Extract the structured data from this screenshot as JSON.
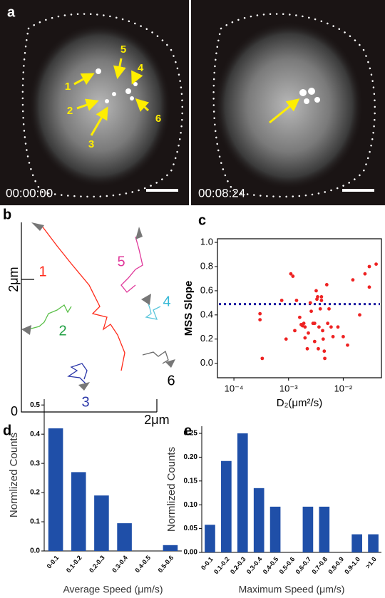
{
  "panel_a": {
    "label": "a",
    "frames": [
      {
        "timestamp": "00:00:00",
        "markers": [
          "1",
          "2",
          "3",
          "4",
          "5",
          "6"
        ]
      },
      {
        "timestamp": "00:08:24"
      }
    ]
  },
  "panel_b": {
    "label": "b",
    "y_scale_label": "2μm",
    "x_scale_label": "2μm",
    "origin_label": "0",
    "tracks": [
      "1",
      "2",
      "3",
      "4",
      "5",
      "6"
    ]
  },
  "chart_data": [
    {
      "type": "scatter",
      "label": "c",
      "xlabel": "D₂(μm²/s)",
      "ylabel": "MSS Slope",
      "color": "#ee2222",
      "xscale": "log",
      "xlim": [
        5e-05,
        0.05
      ],
      "ylim": [
        -0.12,
        1.03
      ],
      "xticks": [
        {
          "value": 0.0001,
          "label": "10⁻⁴"
        },
        {
          "value": 0.001,
          "label": "10⁻³"
        },
        {
          "value": 0.01,
          "label": "10⁻²"
        }
      ],
      "yticks": [
        {
          "value": 0,
          "label": "0.0"
        },
        0.2,
        0.4,
        0.6,
        0.8,
        {
          "value": 1,
          "label": "1.0"
        }
      ],
      "reference_line": {
        "y": 0.49,
        "color": "#1a1aa0"
      },
      "x": [
        0.00033,
        0.0003,
        0.0003,
        0.00075,
        0.0011,
        0.0012,
        0.0009,
        0.0013,
        0.0014,
        0.0016,
        0.0017,
        0.0018,
        0.0019,
        0.002,
        0.002,
        0.0022,
        0.0023,
        0.0025,
        0.0026,
        0.0028,
        0.003,
        0.003,
        0.0032,
        0.0033,
        0.0034,
        0.0035,
        0.0036,
        0.0038,
        0.004,
        0.004,
        0.0042,
        0.0043,
        0.0045,
        0.0046,
        0.005,
        0.0052,
        0.0055,
        0.006,
        0.0065,
        0.008,
        0.01,
        0.012,
        0.015,
        0.02,
        0.025,
        0.03,
        0.03,
        0.04
      ],
      "y": [
        0.04,
        0.41,
        0.36,
        0.52,
        0.74,
        0.72,
        0.2,
        0.27,
        0.52,
        0.38,
        0.32,
        0.31,
        0.33,
        0.3,
        0.21,
        0.12,
        0.25,
        0.5,
        0.43,
        0.33,
        0.33,
        0.18,
        0.6,
        0.53,
        0.55,
        0.12,
        0.3,
        0.45,
        0.55,
        0.52,
        0.27,
        0.2,
        0.1,
        0.04,
        0.65,
        0.33,
        0.45,
        0.3,
        0.22,
        0.3,
        0.22,
        0.15,
        0.69,
        0.4,
        0.74,
        0.63,
        0.8,
        0.82
      ]
    },
    {
      "type": "bar",
      "label": "d",
      "xlabel": "Average Speed (μm/s)",
      "ylabel": "Normlized Counts",
      "color": "#1f4fa8",
      "categories": [
        "0-0.1",
        "0.1-0.2",
        "0.2-0.3",
        "0.3-0.4",
        "0.4-0.5",
        "0.5-0.6"
      ],
      "values": [
        0.42,
        0.27,
        0.19,
        0.095,
        0,
        0.02
      ],
      "ylim": [
        0,
        0.52
      ],
      "yticks": [
        {
          "value": 0,
          "label": "0.0"
        },
        0.1,
        0.2,
        0.3,
        0.4,
        0.5
      ]
    },
    {
      "type": "bar",
      "label": "e",
      "xlabel": "Maximum Speed (μm/s)",
      "ylabel": "Normlized Counts",
      "color": "#1f4fa8",
      "categories": [
        "0-0.1",
        "0.1-0.2",
        "0.2-0.3",
        "0.3-0.4",
        "0.4-0.5",
        "0.5-0.6",
        "0.6-0.7",
        "0.7-0.8",
        "0.8-0.9",
        "0.9-1.0",
        ">1.0"
      ],
      "values": [
        0.058,
        0.192,
        0.25,
        0.135,
        0.096,
        0,
        0.096,
        0.096,
        0,
        0.038,
        0.038
      ],
      "ylim": [
        0,
        0.265
      ],
      "yticks": [
        {
          "value": 0,
          "label": "0.00"
        },
        {
          "value": 0.05,
          "label": "0.05"
        },
        {
          "value": 0.1,
          "label": "0.10"
        },
        {
          "value": 0.15,
          "label": "0.15"
        },
        {
          "value": 0.2,
          "label": "0.20"
        },
        {
          "value": 0.25,
          "label": "0.25"
        }
      ]
    }
  ]
}
